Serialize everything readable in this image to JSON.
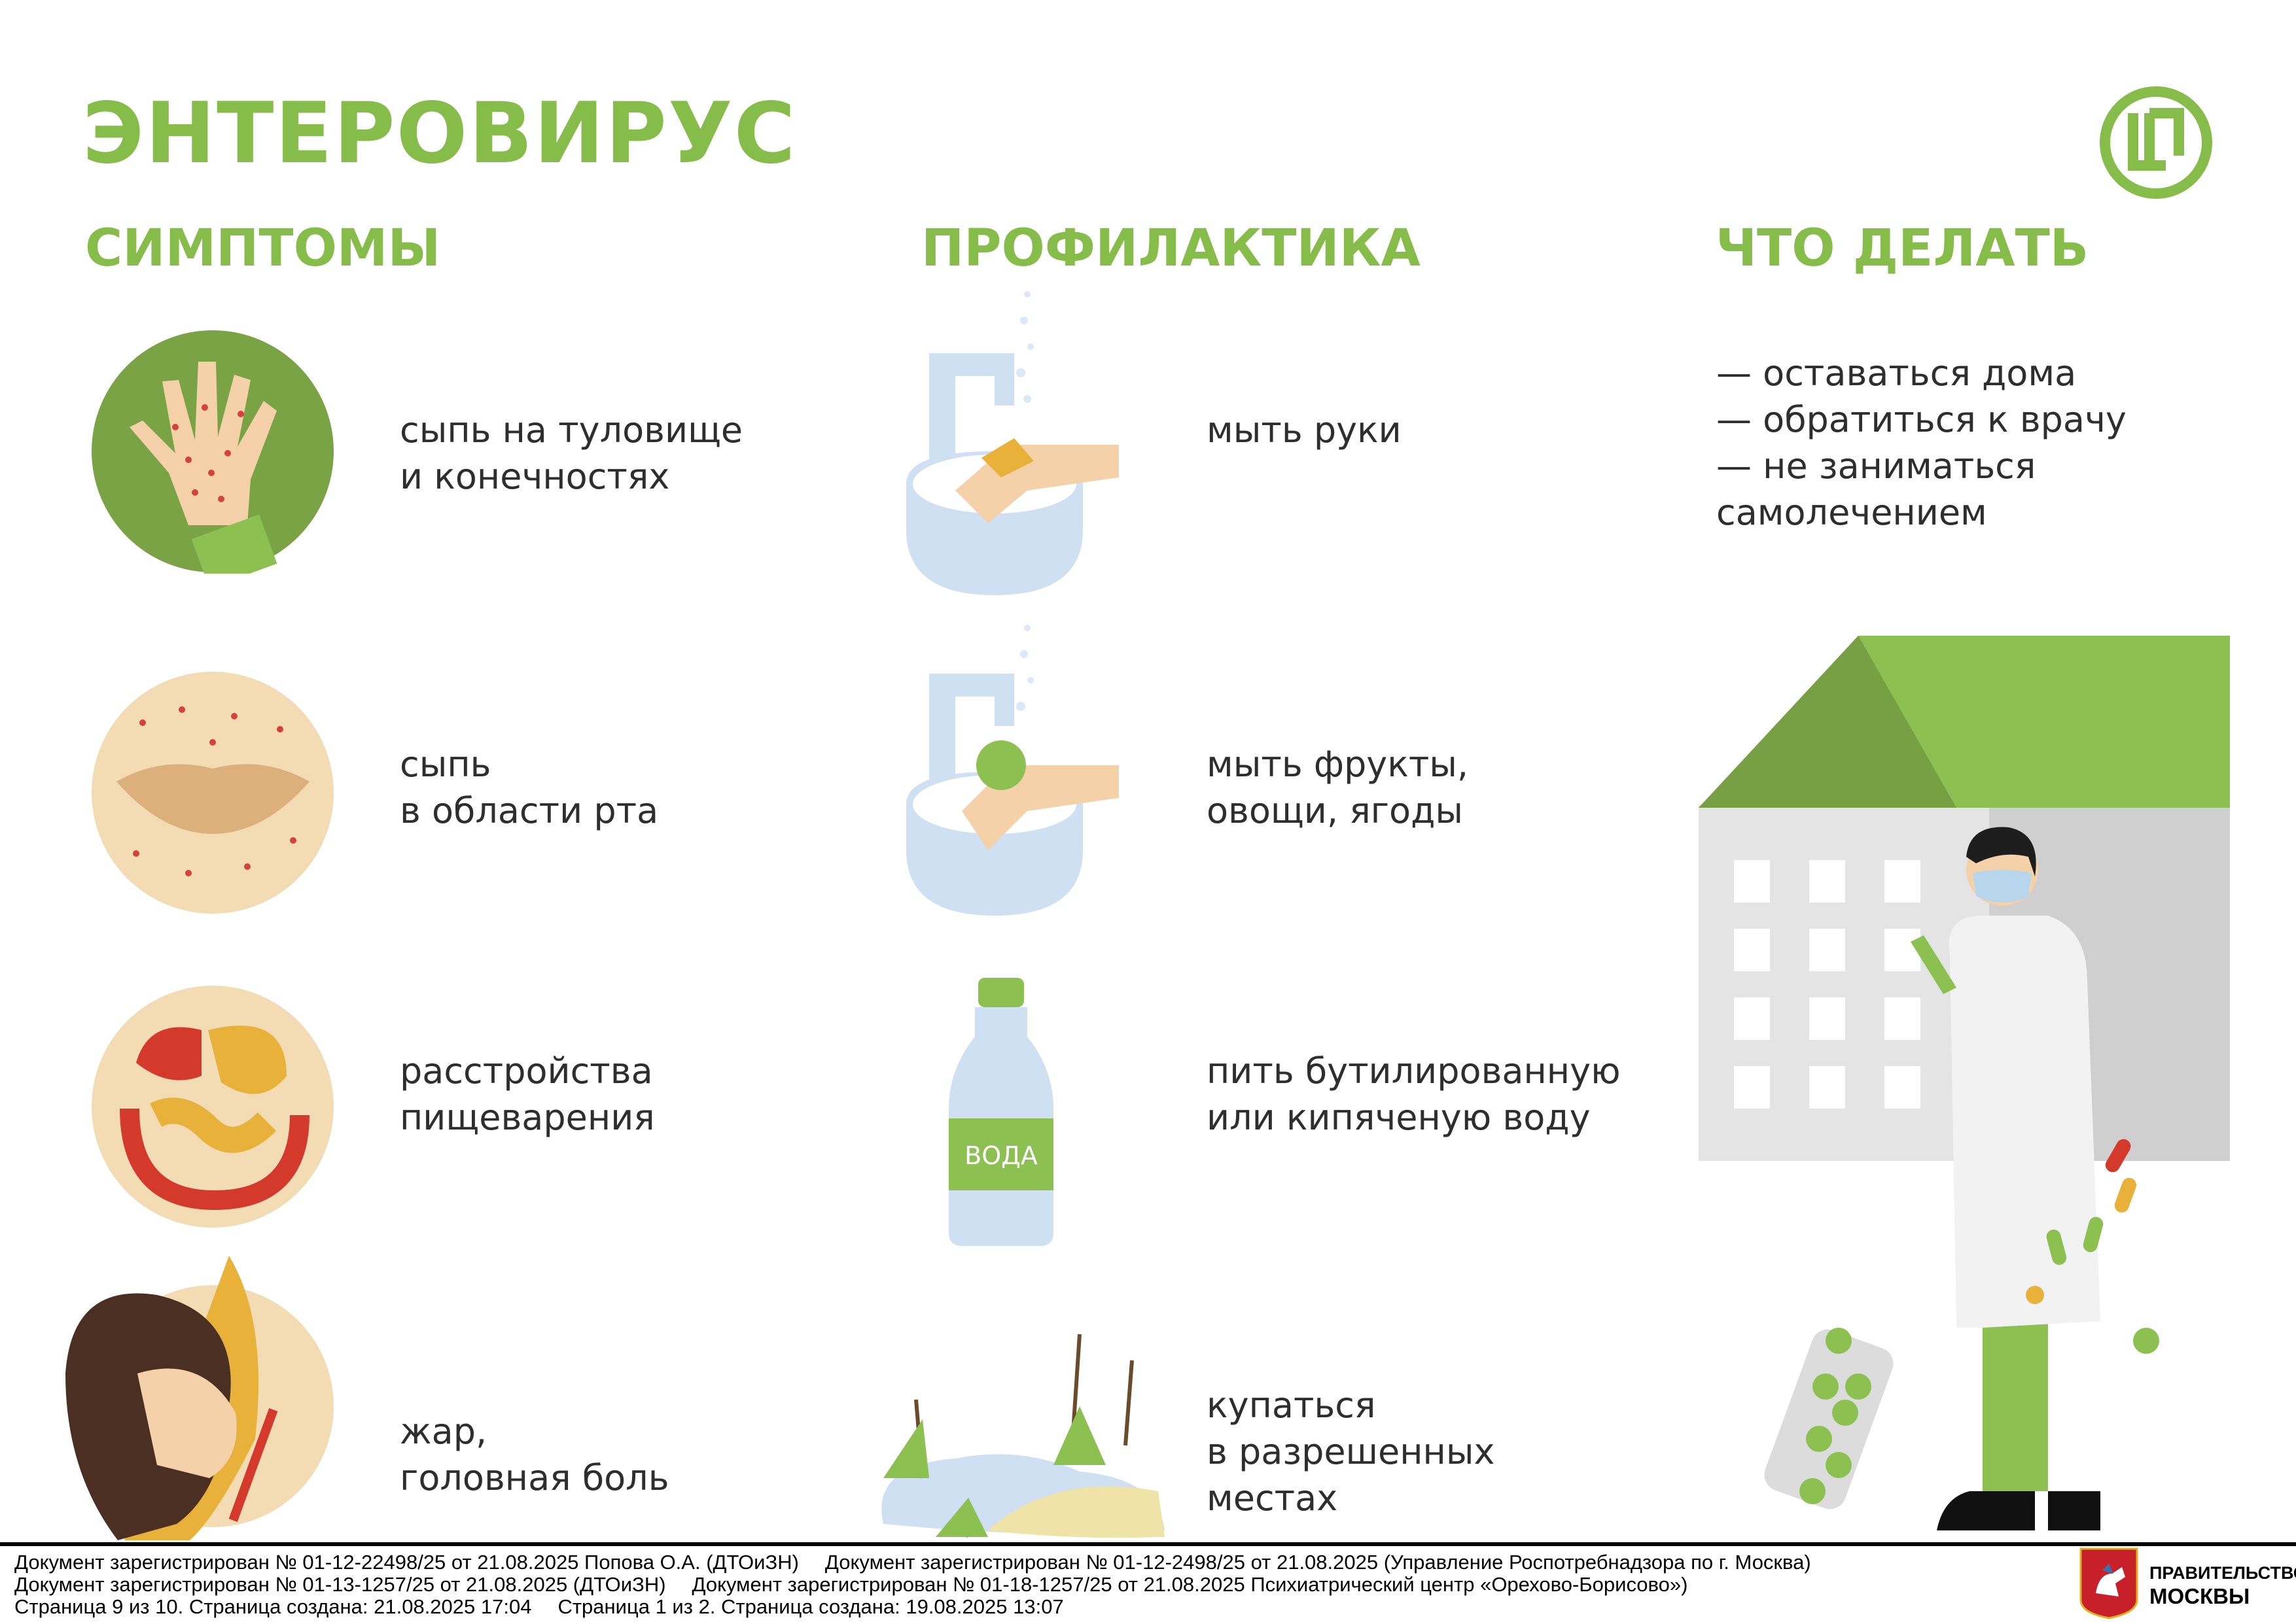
{
  "title": "ЭНТЕРОВИРУС",
  "colors": {
    "accent": "#86bc4a",
    "text": "#2e2e2e"
  },
  "sections": {
    "symptoms": {
      "heading": "СИМПТОМЫ",
      "items": [
        {
          "text": "сыпь на туловище\nи конечностях",
          "icon": "hand-rash-icon"
        },
        {
          "text": "сыпь\nв области рта",
          "icon": "mouth-rash-icon"
        },
        {
          "text": "расстройства\nпищеварения",
          "icon": "digestive-system-icon"
        },
        {
          "text": "жар,\nголовная боль",
          "icon": "fever-headache-icon"
        }
      ]
    },
    "prevention": {
      "heading": "ПРОФИЛАКТИКА",
      "items": [
        {
          "text": "мыть руки",
          "icon": "wash-hands-icon"
        },
        {
          "text": "мыть фрукты,\nовощи, ягоды",
          "icon": "wash-fruit-icon"
        },
        {
          "text": "пить бутилированную\nили кипяченую воду",
          "icon": "water-bottle-icon",
          "bottle_label": "ВОДА"
        },
        {
          "text": "купаться\nв разрешенных\nместах",
          "icon": "pond-icon"
        }
      ]
    },
    "what_to_do": {
      "heading": "ЧТО ДЕЛАТЬ",
      "items": [
        "— оставаться дома",
        "— обратиться к врачу",
        "— не заниматься\nсамолечением"
      ]
    }
  },
  "footer": {
    "line1a": "Документ зарегистрирован № 01-12-22498/25 от 21.08.2025 Попова О.А. (ДТОиЗН)",
    "line1b": "Документ зарегистрирован № 01-12-2498/25 от 21.08.2025 (Управление Роспотребнадзора по г. Москва)",
    "line2a": "Документ зарегистрирован № 01-13-1257/25 от 21.08.2025 (ДТОиЗН)",
    "line2b": "Документ зарегистрирован № 01-18-1257/25 от 21.08.2025 Психиатрический центр «Орехово-Борисово»)",
    "line3a": "Страница 9 из 10. Страница создана: 21.08.2025 17:04",
    "line3b": "Страница 1 из 2. Страница создана: 19.08.2025 13:07",
    "gov_line1": "ПРАВИТЕЛЬСТВО",
    "gov_line2": "МОСКВЫ"
  }
}
